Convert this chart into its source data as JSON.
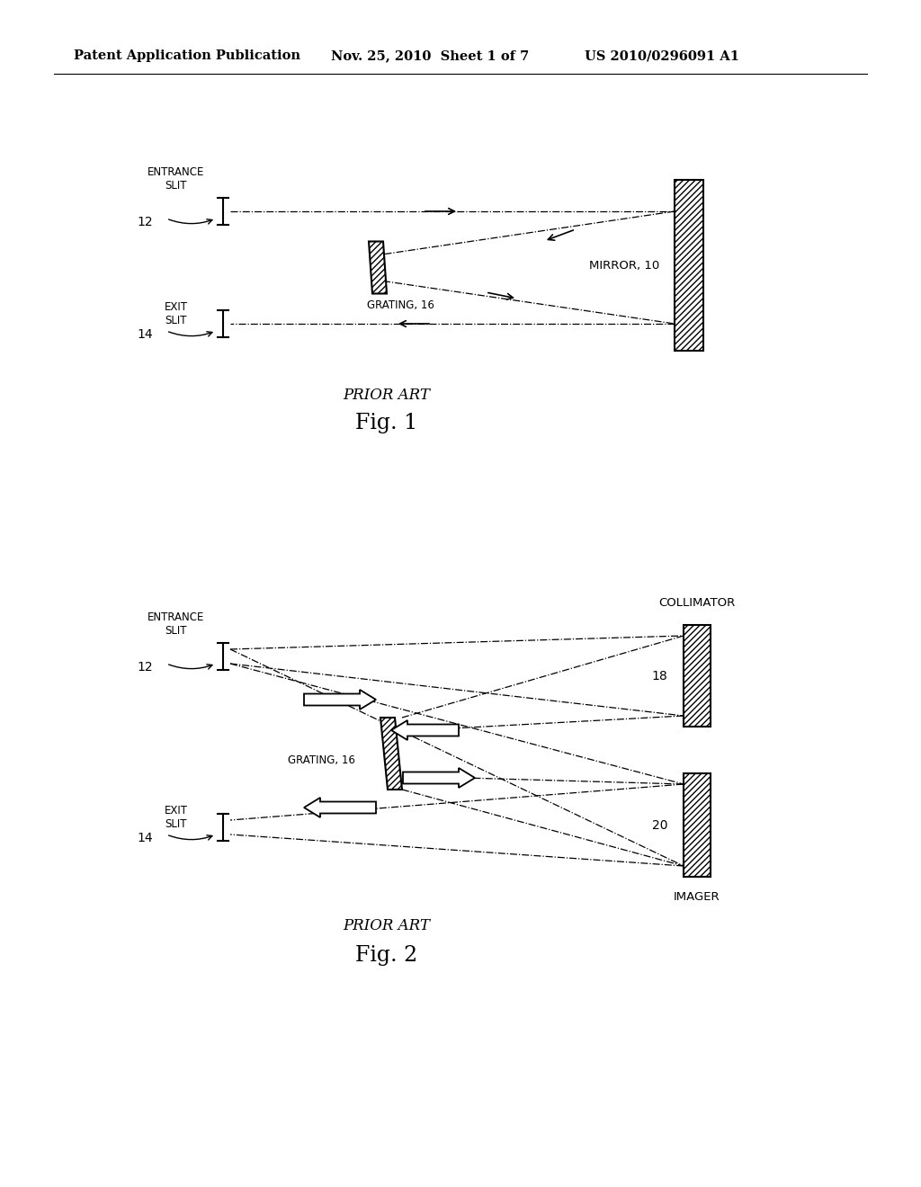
{
  "bg_color": "#ffffff",
  "header_left": "Patent Application Publication",
  "header_mid": "Nov. 25, 2010  Sheet 1 of 7",
  "header_right": "US 2010/0296091 A1",
  "fig1": {
    "title_italic": "PRIOR ART",
    "title_normal": "Fig. 1",
    "entrance_slit_label": "ENTRANCE\nSLIT",
    "exit_slit_label": "EXIT\nSLIT",
    "label_12": "12",
    "label_14": "14",
    "grating_label": "GRATING, 16",
    "mirror_label": "MIRROR, 10"
  },
  "fig2": {
    "title_italic": "PRIOR ART",
    "title_normal": "Fig. 2",
    "entrance_slit_label": "ENTRANCE\nSLIT",
    "exit_slit_label": "EXIT\nSLIT",
    "label_12": "12",
    "label_14": "14",
    "grating_label": "GRATING, 16",
    "collimator_label": "COLLIMATOR",
    "imager_label": "IMAGER",
    "label_18": "18",
    "label_20": "20"
  }
}
